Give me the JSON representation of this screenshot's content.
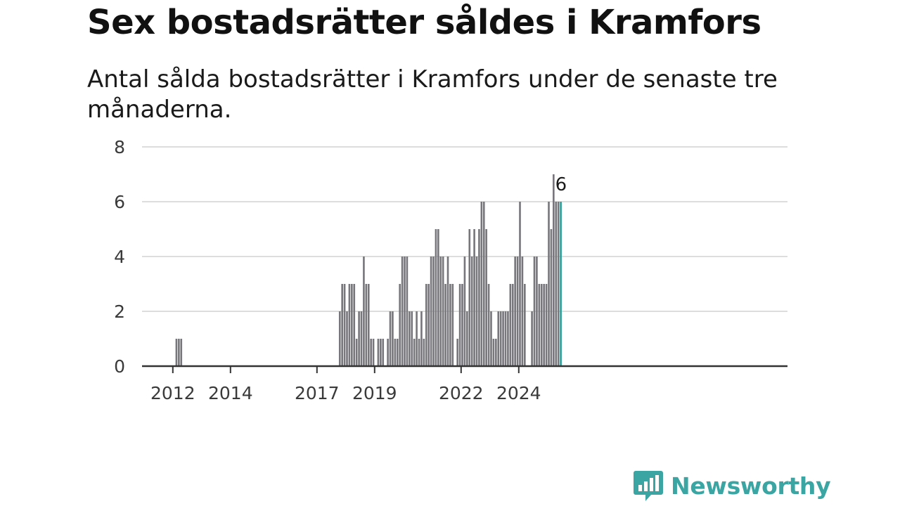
{
  "title": "Sex bostadsrätter såldes i Kramfors",
  "subtitle": "Antal sålda bostadsrätter i Kramfors under de senaste tre månaderna.",
  "brand": {
    "name": "Newsworthy"
  },
  "colors": {
    "bar": "#77767b",
    "highlight": "#2a9d98",
    "grid": "#dddddd",
    "axis": "#333333",
    "brand": "#3aa5a2"
  },
  "chart_data": {
    "type": "bar",
    "xlabel": "",
    "ylabel": "",
    "ylim": [
      0,
      8
    ],
    "yticks": [
      0,
      2,
      4,
      6,
      8
    ],
    "grid": true,
    "x_start": "2011-01",
    "xticks": [
      "2012",
      "2014",
      "2017",
      "2019",
      "2022",
      "2024"
    ],
    "highlight_label": "6",
    "values": [
      0,
      0,
      0,
      0,
      0,
      0,
      0,
      0,
      0,
      0,
      0,
      0,
      0,
      1,
      1,
      1,
      0,
      0,
      0,
      0,
      0,
      0,
      0,
      0,
      0,
      0,
      0,
      0,
      0,
      0,
      0,
      0,
      0,
      0,
      0,
      0,
      0,
      0,
      0,
      0,
      0,
      0,
      0,
      0,
      0,
      0,
      0,
      0,
      0,
      0,
      0,
      0,
      0,
      0,
      0,
      0,
      0,
      0,
      0,
      0,
      0,
      0,
      0,
      0,
      0,
      0,
      0,
      0,
      0,
      0,
      0,
      0,
      0,
      0,
      0,
      0,
      0,
      0,
      0,
      0,
      0,
      2,
      3,
      3,
      2,
      3,
      3,
      3,
      1,
      2,
      2,
      4,
      3,
      3,
      1,
      1,
      0,
      1,
      1,
      1,
      0,
      1,
      2,
      2,
      1,
      1,
      3,
      4,
      4,
      4,
      2,
      2,
      1,
      2,
      1,
      2,
      1,
      3,
      3,
      4,
      4,
      5,
      5,
      4,
      4,
      3,
      4,
      3,
      3,
      0,
      1,
      3,
      3,
      4,
      2,
      5,
      4,
      5,
      4,
      5,
      6,
      6,
      5,
      3,
      2,
      1,
      1,
      2,
      2,
      2,
      2,
      2,
      3,
      3,
      4,
      4,
      6,
      4,
      3,
      0,
      0,
      2,
      4,
      4,
      3,
      3,
      3,
      3,
      6,
      5,
      7,
      6,
      6,
      6
    ]
  }
}
